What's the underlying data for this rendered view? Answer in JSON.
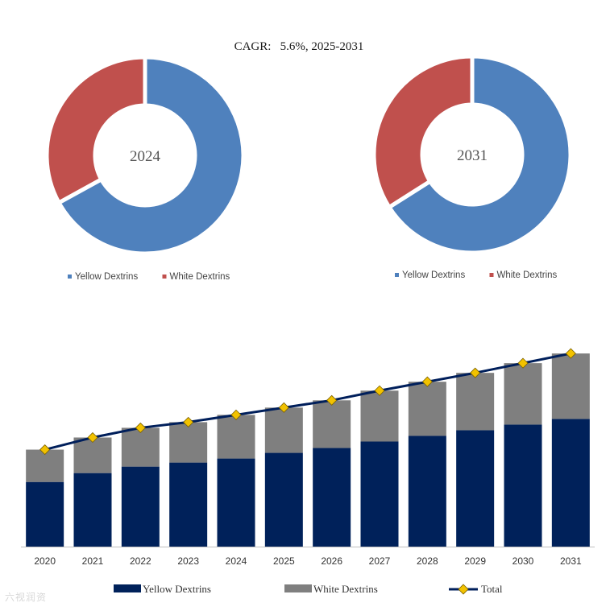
{
  "colors": {
    "yellow": "#4f81bd",
    "white": "#c0504d",
    "bar_yellow": "#00215a",
    "bar_white": "#7f7f7f",
    "line": "#001f5b",
    "marker": "#f2c200",
    "marker_stroke": "#7a6000"
  },
  "title": "CAGR:   5.6%, 2025-2031",
  "watermark": "六视润资",
  "chart_data": [
    {
      "type": "pie",
      "title": "2024",
      "labels": [
        "Yellow Dextrins",
        "White Dextrins"
      ],
      "values": [
        67,
        33
      ]
    },
    {
      "type": "pie",
      "title": "2031",
      "labels": [
        "Yellow Dextrins",
        "White Dextrins"
      ],
      "values": [
        66,
        34
      ]
    },
    {
      "type": "bar",
      "stacked": true,
      "categories": [
        "2020",
        "2021",
        "2022",
        "2023",
        "2024",
        "2025",
        "2026",
        "2027",
        "2028",
        "2029",
        "2030",
        "2031"
      ],
      "series": [
        {
          "name": "Yellow Dextrins",
          "values": [
            80,
            91,
            99,
            104,
            109,
            116,
            122,
            130,
            137,
            144,
            151,
            158
          ]
        },
        {
          "name": "White Dextrins",
          "values": [
            40,
            44,
            48,
            50,
            54,
            56,
            59,
            63,
            67,
            71,
            76,
            81
          ]
        },
        {
          "name": "Total",
          "kind": "line",
          "values": [
            120,
            135,
            147,
            154,
            163,
            172,
            181,
            193,
            204,
            215,
            227,
            239
          ]
        }
      ],
      "legend": [
        "Yellow Dextrins",
        "White Dextrins",
        "Total"
      ],
      "ylim": [
        0,
        260
      ]
    }
  ]
}
